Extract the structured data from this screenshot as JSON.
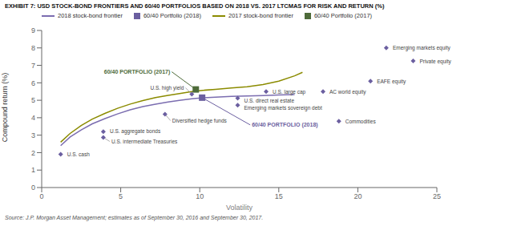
{
  "chart_data": {
    "type": "scatter",
    "title": "EXHIBIT 7: USD STOCK-BOND FRONTIERS AND 60/40 PORTFOLIOS BASED ON 2018 VS. 2017 LTCMAS FOR RISK AND RETURN (%)",
    "source": "Source: J.P. Morgan Asset Management; estimates as of September 30, 2016 and September 30, 2017.",
    "xlabel": "Volatility",
    "ylabel": "Compound return (%)",
    "xlim": [
      0,
      25
    ],
    "ylim": [
      0,
      9
    ],
    "xticks": [
      0,
      5,
      10,
      15,
      20,
      25
    ],
    "yticks": [
      0,
      1,
      2,
      3,
      4,
      5,
      6,
      7,
      8,
      9
    ],
    "grid": false,
    "legend": "upper left",
    "series": [
      {
        "name": "2018 stock-bond frontier",
        "type": "line",
        "color": "#7b6db0",
        "x": [
          1.2,
          1.8,
          2.5,
          3.2,
          4.0,
          4.8,
          5.6,
          6.4,
          7.2,
          8.0,
          8.8,
          9.5,
          10.2,
          11.0,
          12.0,
          13.0,
          14.0,
          15.0,
          16.0
        ],
        "values": [
          2.4,
          2.9,
          3.3,
          3.65,
          3.95,
          4.22,
          4.45,
          4.64,
          4.78,
          4.9,
          5.0,
          5.08,
          5.14,
          5.18,
          5.22,
          5.25,
          5.27,
          5.3,
          5.33
        ]
      },
      {
        "name": "60/40 Portfolio (2018)",
        "type": "scatter",
        "marker": "square",
        "color": "#6b5fa0",
        "x": [
          10.15
        ],
        "values": [
          5.15
        ],
        "labels": [
          "60/40 PORTFOLIO (2018)"
        ]
      },
      {
        "name": "2017 stock-bond frontier",
        "type": "line",
        "color": "#8b8b00",
        "x": [
          1.2,
          1.8,
          2.5,
          3.2,
          4.0,
          4.8,
          5.6,
          6.4,
          7.2,
          8.0,
          8.8,
          9.5,
          10.2,
          11.0,
          12.0,
          13.0,
          14.0,
          15.0,
          16.0,
          16.5
        ],
        "values": [
          2.6,
          3.1,
          3.55,
          3.92,
          4.25,
          4.54,
          4.78,
          4.98,
          5.15,
          5.28,
          5.4,
          5.5,
          5.57,
          5.63,
          5.7,
          5.77,
          5.9,
          6.1,
          6.4,
          6.6
        ]
      },
      {
        "name": "60/40 Portfolio (2017)",
        "type": "scatter",
        "marker": "square",
        "color": "#4e6b3a",
        "x": [
          9.75
        ],
        "values": [
          5.62
        ],
        "labels": [
          "60/40 PORTFOLIO (2017)"
        ]
      },
      {
        "type": "scatter",
        "marker": "diamond",
        "color": "#6b5fa0",
        "x": [
          1.2,
          3.9,
          3.9,
          7.8,
          9.5,
          14.2,
          12.4,
          12.4,
          17.8,
          20.8,
          18.8,
          21.8,
          23.5
        ],
        "values": [
          1.9,
          3.2,
          2.87,
          4.2,
          5.35,
          5.5,
          5.12,
          4.72,
          5.5,
          6.1,
          3.8,
          8.0,
          7.25
        ],
        "labels": [
          "U.S. cash",
          "U.S. aggregate bonds",
          "U.S. intermediate Treasuries",
          "Diversified hedge funds",
          "U.S. high yield",
          "U.S. large cap",
          "U.S. direct real estate",
          "Emerging markets sovereign debt",
          "AC world equity",
          "EAFE equity",
          "Commodities",
          "Emerging markets equity",
          "Private equity"
        ]
      }
    ]
  }
}
